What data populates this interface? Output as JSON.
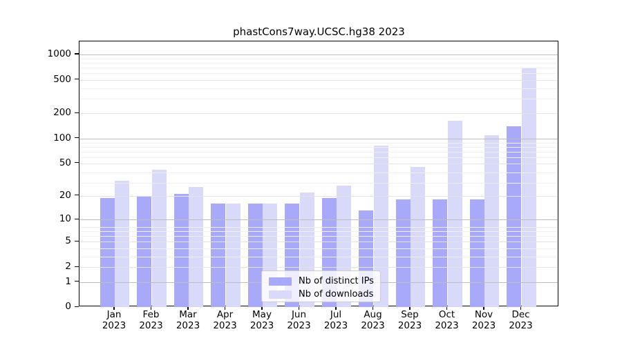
{
  "title": "phastCons7way.UCSC.hg38 2023",
  "chart_data": {
    "type": "bar",
    "title": "phastCons7way.UCSC.hg38 2023",
    "categories": [
      "Jan 2023",
      "Feb 2023",
      "Mar 2023",
      "Apr 2023",
      "May 2023",
      "Jun 2023",
      "Jul 2023",
      "Aug 2023",
      "Sep 2023",
      "Oct 2023",
      "Nov 2023",
      "Dec 2023"
    ],
    "month_labels": [
      "Jan",
      "Feb",
      "Mar",
      "Apr",
      "May",
      "Jun",
      "Jul",
      "Aug",
      "Sep",
      "Oct",
      "Nov",
      "Dec"
    ],
    "year_label": "2023",
    "series": [
      {
        "name": "Nb of distinct IPs",
        "color": "#a9a9fa",
        "values": [
          19,
          20,
          21,
          16,
          16,
          16,
          19,
          13,
          18,
          18,
          18,
          140
        ]
      },
      {
        "name": "Nb of downloads",
        "color": "#d9d9fa",
        "values": [
          31,
          42,
          26,
          16,
          16,
          22,
          27,
          82,
          45,
          163,
          110,
          700
        ]
      }
    ],
    "y_axis": {
      "scale": "log1p",
      "ticks": [
        1000,
        500,
        200,
        100,
        50,
        20,
        10,
        5,
        2,
        1,
        0
      ],
      "ylim": [
        0,
        1430
      ],
      "major_gridlines": [
        1,
        10,
        100,
        1000
      ],
      "mid_gridlines": [
        2,
        5,
        20,
        50,
        200,
        500
      ],
      "minor_gridlines": [
        3,
        4,
        6,
        7,
        8,
        29,
        39,
        59,
        69,
        79,
        89,
        299,
        399,
        599,
        699,
        799,
        899
      ]
    },
    "xlabel": "",
    "ylabel": "",
    "grid": true,
    "legend_position": "lower center"
  }
}
